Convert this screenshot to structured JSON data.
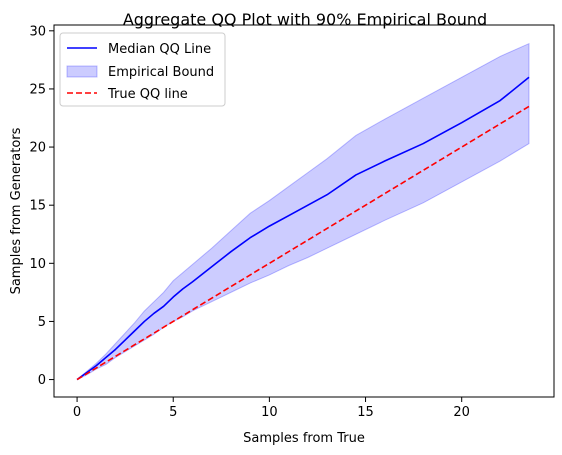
{
  "chart_data": {
    "type": "line",
    "title": "Aggregate QQ Plot with 90% Empirical Bound",
    "xlabel": "Samples from True",
    "ylabel": "Samples from Generators",
    "xlim": [
      -1.2,
      24.8
    ],
    "ylim": [
      -1.5,
      30.5
    ],
    "xticks": [
      0,
      5,
      10,
      15,
      20
    ],
    "yticks": [
      0,
      5,
      10,
      15,
      20,
      25,
      30
    ],
    "grid": false,
    "legend_position": "top-left",
    "series": [
      {
        "name": "Median QQ Line",
        "kind": "line",
        "color": "#0000ff",
        "dash": "solid",
        "x": [
          0,
          0.5,
          1,
          1.5,
          2,
          2.5,
          3,
          3.5,
          4,
          4.5,
          5,
          5.5,
          6,
          7,
          8,
          9,
          10,
          11,
          12,
          13,
          14.5,
          16,
          18,
          20,
          22,
          23.5
        ],
        "y": [
          0,
          0.6,
          1.2,
          1.9,
          2.6,
          3.4,
          4.2,
          5.0,
          5.7,
          6.3,
          7.1,
          7.8,
          8.4,
          9.7,
          11.0,
          12.2,
          13.2,
          14.1,
          15.0,
          15.9,
          17.6,
          18.8,
          20.3,
          22.1,
          24.0,
          26.0
        ]
      },
      {
        "name": "Empirical Bound",
        "kind": "band",
        "color": "#0000ff",
        "opacity": 0.2,
        "x": [
          0,
          0.5,
          1,
          1.5,
          2,
          2.5,
          3,
          3.5,
          4,
          4.5,
          5,
          5.5,
          6,
          7,
          8,
          9,
          10,
          11,
          12,
          13,
          14.5,
          16,
          18,
          20,
          22,
          23.5
        ],
        "lower": [
          0,
          0.4,
          0.9,
          1.3,
          1.9,
          2.4,
          2.9,
          3.4,
          3.9,
          4.5,
          5.0,
          5.4,
          5.9,
          6.7,
          7.5,
          8.3,
          9.0,
          9.8,
          10.5,
          11.3,
          12.5,
          13.7,
          15.2,
          17.0,
          18.8,
          20.3
        ],
        "upper": [
          0,
          0.7,
          1.4,
          2.2,
          3.1,
          4.0,
          4.9,
          5.9,
          6.7,
          7.5,
          8.5,
          9.2,
          9.9,
          11.3,
          12.8,
          14.3,
          15.4,
          16.6,
          17.8,
          19.0,
          21.0,
          22.4,
          24.2,
          26.0,
          27.8,
          28.9
        ]
      },
      {
        "name": "True QQ line",
        "kind": "line",
        "color": "#ff0000",
        "dash": "dashed",
        "x": [
          0,
          23.5
        ],
        "y": [
          0,
          23.5
        ]
      }
    ]
  }
}
